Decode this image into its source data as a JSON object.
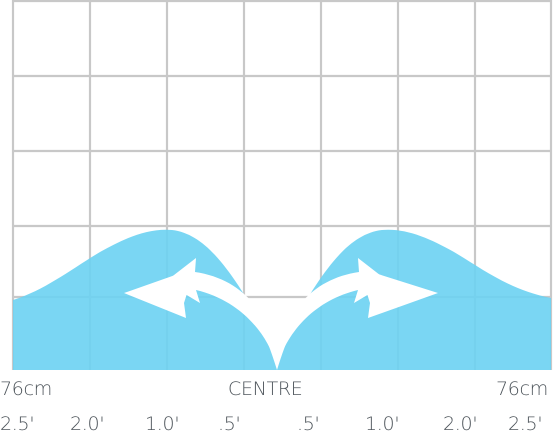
{
  "colors": {
    "grid": "#c8c8c8",
    "fill": "#6cd1f2",
    "arrow": "#ffffff",
    "text": "#4f565c"
  },
  "icons": {
    "left_arrow": "curved-arrow-left-icon",
    "right_arrow": "curved-arrow-right-icon"
  },
  "labels": {
    "left_distance": "76cm",
    "centre": "CENTRE",
    "right_distance": "76cm"
  },
  "scale": [
    "2.5'",
    "2.0'",
    "1.0'",
    ".5'",
    ".5'",
    "1.0'",
    "2.0'",
    "2.5'"
  ]
}
